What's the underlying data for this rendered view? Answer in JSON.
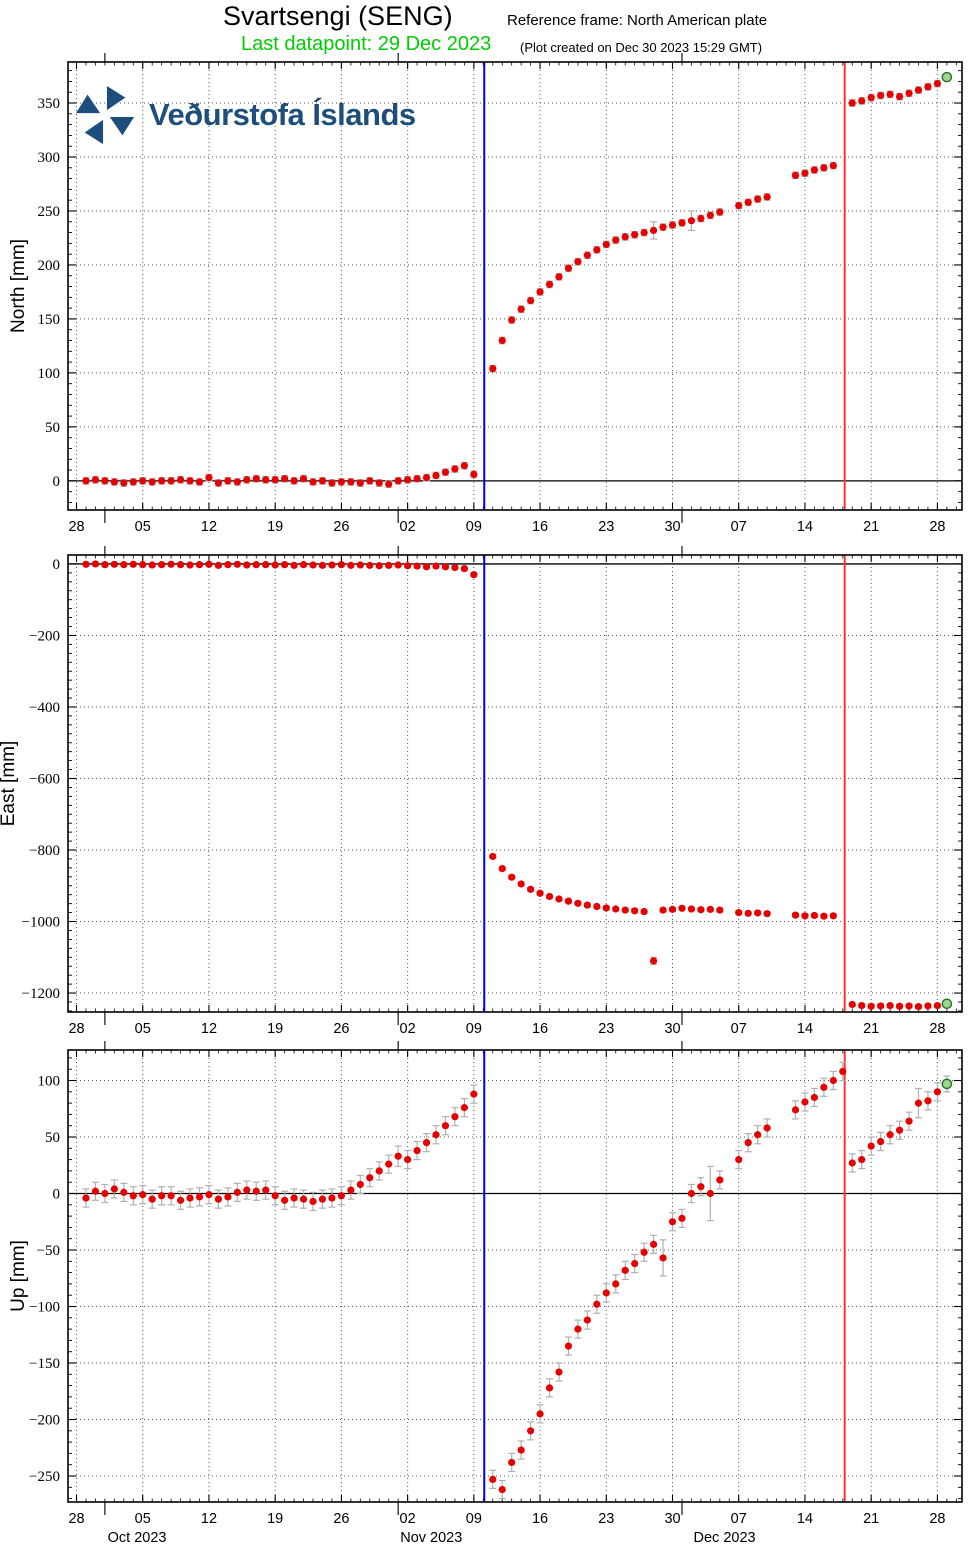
{
  "header": {
    "title": "Svartsengi (SENG)",
    "reference_frame": "Reference frame: North American plate",
    "last_datapoint": "Last datapoint: 29 Dec 2023",
    "plot_created": "(Plot created on Dec 30 2023 15:29 GMT)"
  },
  "logo": {
    "text": "Veðurstofa Íslands",
    "color": "#1d4e7c"
  },
  "colors": {
    "point": "#e60000",
    "error_bar": "#b0b0b0",
    "green_fill": "#98d888",
    "green_edge": "#2d6e2d",
    "blue_line": "#0000e6",
    "red_line": "#ff3232",
    "grid": "#555555",
    "axis": "#000000",
    "subtitle_green": "#00cc00"
  },
  "x_axis": {
    "unit": "days since 28 Sep 2023",
    "range_days": [
      -0.9,
      93.6
    ],
    "tick_days": [
      0,
      7,
      14,
      21,
      28,
      35,
      42,
      49,
      56,
      63,
      70,
      77,
      84,
      91
    ],
    "tick_labels": [
      "28",
      "05",
      "12",
      "19",
      "26",
      "02",
      "09",
      "16",
      "23",
      "30",
      "07",
      "14",
      "21",
      "28"
    ],
    "month_start_days": [
      3,
      34,
      64
    ],
    "month_labels": [
      {
        "label": "Oct 2023",
        "day": 6.4
      },
      {
        "label": "Nov 2023",
        "day": 37.5
      },
      {
        "label": "Dec 2023",
        "day": 68.5
      }
    ]
  },
  "event_lines": [
    {
      "name": "blue-vertical-line",
      "color": "#0000e6",
      "day": 43.1
    },
    {
      "name": "red-vertical-line",
      "color": "#ff3232",
      "day": 81.2
    }
  ],
  "chart_data": [
    {
      "type": "scatter",
      "name": "north",
      "ylabel": "North [mm]",
      "grid": true,
      "ylim": [
        -27,
        388
      ],
      "yminor": 10,
      "yticks": [
        [
          0,
          "0"
        ],
        [
          50,
          "50"
        ],
        [
          100,
          "100"
        ],
        [
          150,
          "150"
        ],
        [
          200,
          "200"
        ],
        [
          250,
          "250"
        ],
        [
          300,
          "300"
        ],
        [
          350,
          "350"
        ]
      ],
      "default_err": 3,
      "points": [
        [
          1,
          0
        ],
        [
          2,
          1
        ],
        [
          3,
          0
        ],
        [
          4,
          -1
        ],
        [
          5,
          -2
        ],
        [
          6,
          -1
        ],
        [
          7,
          0
        ],
        [
          8,
          -1
        ],
        [
          9,
          0
        ],
        [
          10,
          0
        ],
        [
          11,
          1
        ],
        [
          12,
          0
        ],
        [
          13,
          -1
        ],
        [
          14,
          3
        ],
        [
          15,
          -2
        ],
        [
          16,
          0
        ],
        [
          17,
          -1
        ],
        [
          18,
          1
        ],
        [
          19,
          2
        ],
        [
          20,
          1
        ],
        [
          21,
          1
        ],
        [
          22,
          2
        ],
        [
          23,
          0
        ],
        [
          24,
          2
        ],
        [
          25,
          -1
        ],
        [
          26,
          0
        ],
        [
          27,
          -2
        ],
        [
          28,
          -1
        ],
        [
          29,
          -1
        ],
        [
          30,
          -2
        ],
        [
          31,
          0
        ],
        [
          32,
          -2
        ],
        [
          33,
          -3
        ],
        [
          34,
          0
        ],
        [
          35,
          1
        ],
        [
          36,
          2
        ],
        [
          37,
          3
        ],
        [
          38,
          5
        ],
        [
          39,
          8
        ],
        [
          40,
          11
        ],
        [
          41,
          14
        ],
        [
          42,
          6
        ],
        [
          44,
          104
        ],
        [
          45,
          130
        ],
        [
          46,
          149
        ],
        [
          47,
          159
        ],
        [
          48,
          167
        ],
        [
          49,
          175
        ],
        [
          50,
          182
        ],
        [
          51,
          189
        ],
        [
          52,
          197
        ],
        [
          53,
          203
        ],
        [
          54,
          209
        ],
        [
          55,
          214
        ],
        [
          56,
          219
        ],
        [
          57,
          223
        ],
        [
          58,
          226
        ],
        [
          59,
          228
        ],
        [
          60,
          230
        ],
        [
          61,
          232,
          8
        ],
        [
          62,
          235
        ],
        [
          63,
          237
        ],
        [
          64,
          239
        ],
        [
          65,
          241,
          9
        ],
        [
          66,
          243
        ],
        [
          67,
          246
        ],
        [
          68,
          249
        ],
        [
          70,
          255
        ],
        [
          71,
          258
        ],
        [
          72,
          261
        ],
        [
          73,
          263
        ],
        [
          76,
          283
        ],
        [
          77,
          285
        ],
        [
          78,
          288
        ],
        [
          79,
          290
        ],
        [
          80,
          292
        ],
        [
          82,
          350
        ],
        [
          83,
          352
        ],
        [
          84,
          355
        ],
        [
          85,
          357
        ],
        [
          86,
          358
        ],
        [
          87,
          356
        ],
        [
          88,
          359
        ],
        [
          89,
          362
        ],
        [
          90,
          365
        ],
        [
          91,
          368
        ]
      ],
      "last_point": [
        92,
        374,
        3
      ]
    },
    {
      "type": "scatter",
      "name": "east",
      "ylabel": "East [mm]",
      "grid": true,
      "ylim": [
        -1253,
        25
      ],
      "yminor": 25,
      "yticks": [
        [
          0,
          "0"
        ],
        [
          -200,
          "−200"
        ],
        [
          -400,
          "−400"
        ],
        [
          -600,
          "−600"
        ],
        [
          -800,
          "−800"
        ],
        [
          -1000,
          "−1000"
        ],
        [
          -1200,
          "−1200"
        ]
      ],
      "default_err": 5,
      "points": [
        [
          1,
          -1
        ],
        [
          2,
          0
        ],
        [
          3,
          -2
        ],
        [
          4,
          -1
        ],
        [
          5,
          -2
        ],
        [
          6,
          -1
        ],
        [
          7,
          -2
        ],
        [
          8,
          -3
        ],
        [
          9,
          -2
        ],
        [
          10,
          -1
        ],
        [
          11,
          -2
        ],
        [
          12,
          -3
        ],
        [
          13,
          -2
        ],
        [
          14,
          -1
        ],
        [
          15,
          -4
        ],
        [
          16,
          -2
        ],
        [
          17,
          -1
        ],
        [
          18,
          -3
        ],
        [
          19,
          -2
        ],
        [
          20,
          -2
        ],
        [
          21,
          -3
        ],
        [
          22,
          -2
        ],
        [
          23,
          -4
        ],
        [
          24,
          -2
        ],
        [
          25,
          -3
        ],
        [
          26,
          -4
        ],
        [
          27,
          -3
        ],
        [
          28,
          -2
        ],
        [
          29,
          -4
        ],
        [
          30,
          -3
        ],
        [
          31,
          -4
        ],
        [
          32,
          -5
        ],
        [
          33,
          -4
        ],
        [
          34,
          -3
        ],
        [
          35,
          -5
        ],
        [
          36,
          -6
        ],
        [
          37,
          -8
        ],
        [
          38,
          -6
        ],
        [
          39,
          -8
        ],
        [
          40,
          -10
        ],
        [
          41,
          -13
        ],
        [
          42,
          -30
        ],
        [
          44,
          -818
        ],
        [
          45,
          -852
        ],
        [
          46,
          -876
        ],
        [
          47,
          -895
        ],
        [
          48,
          -910
        ],
        [
          49,
          -921
        ],
        [
          50,
          -930
        ],
        [
          51,
          -937
        ],
        [
          52,
          -943
        ],
        [
          53,
          -949
        ],
        [
          54,
          -954
        ],
        [
          55,
          -958
        ],
        [
          56,
          -962
        ],
        [
          57,
          -965
        ],
        [
          58,
          -968
        ],
        [
          59,
          -970
        ],
        [
          60,
          -972
        ],
        [
          61,
          -1110,
          10
        ],
        [
          62,
          -968
        ],
        [
          63,
          -966
        ],
        [
          64,
          -963
        ],
        [
          65,
          -965
        ],
        [
          66,
          -967
        ],
        [
          67,
          -966
        ],
        [
          68,
          -968
        ],
        [
          70,
          -975
        ],
        [
          71,
          -977
        ],
        [
          72,
          -976
        ],
        [
          73,
          -978
        ],
        [
          76,
          -982
        ],
        [
          77,
          -984
        ],
        [
          78,
          -983
        ],
        [
          79,
          -985
        ],
        [
          80,
          -984
        ],
        [
          82,
          -1232
        ],
        [
          83,
          -1235
        ],
        [
          84,
          -1237
        ],
        [
          85,
          -1236
        ],
        [
          86,
          -1235
        ],
        [
          87,
          -1237
        ],
        [
          88,
          -1236
        ],
        [
          89,
          -1238
        ],
        [
          90,
          -1236
        ],
        [
          91,
          -1235
        ]
      ],
      "last_point": [
        92,
        -1230,
        5
      ]
    },
    {
      "type": "scatter",
      "name": "up",
      "ylabel": "Up [mm]",
      "grid": true,
      "ylim": [
        -273,
        127
      ],
      "yminor": 10,
      "yticks": [
        [
          100,
          "100"
        ],
        [
          50,
          "50"
        ],
        [
          0,
          "0"
        ],
        [
          -50,
          "−50"
        ],
        [
          -100,
          "−100"
        ],
        [
          -150,
          "−150"
        ],
        [
          -200,
          "−200"
        ],
        [
          -250,
          "−250"
        ]
      ],
      "default_err": 8,
      "points": [
        [
          1,
          -4
        ],
        [
          2,
          2
        ],
        [
          3,
          0
        ],
        [
          4,
          4
        ],
        [
          5,
          1
        ],
        [
          6,
          -2
        ],
        [
          7,
          -1
        ],
        [
          8,
          -5
        ],
        [
          9,
          -2
        ],
        [
          10,
          -2
        ],
        [
          11,
          -6
        ],
        [
          12,
          -4
        ],
        [
          13,
          -3
        ],
        [
          14,
          -1
        ],
        [
          15,
          -5
        ],
        [
          16,
          -3
        ],
        [
          17,
          1
        ],
        [
          18,
          3
        ],
        [
          19,
          2
        ],
        [
          20,
          3
        ],
        [
          21,
          -2
        ],
        [
          22,
          -6
        ],
        [
          23,
          -4
        ],
        [
          24,
          -5
        ],
        [
          25,
          -7
        ],
        [
          26,
          -5
        ],
        [
          27,
          -4
        ],
        [
          28,
          -2
        ],
        [
          29,
          3
        ],
        [
          30,
          8
        ],
        [
          31,
          14
        ],
        [
          32,
          20
        ],
        [
          33,
          26
        ],
        [
          34,
          33,
          9
        ],
        [
          35,
          30
        ],
        [
          36,
          38
        ],
        [
          37,
          45
        ],
        [
          38,
          52
        ],
        [
          39,
          60
        ],
        [
          40,
          68
        ],
        [
          41,
          76
        ],
        [
          42,
          88
        ],
        [
          44,
          -253
        ],
        [
          45,
          -262
        ],
        [
          46,
          -238
        ],
        [
          47,
          -227
        ],
        [
          48,
          -210
        ],
        [
          49,
          -195
        ],
        [
          50,
          -172
        ],
        [
          51,
          -158
        ],
        [
          52,
          -135
        ],
        [
          53,
          -120
        ],
        [
          54,
          -112
        ],
        [
          55,
          -98
        ],
        [
          56,
          -88
        ],
        [
          57,
          -80
        ],
        [
          58,
          -68
        ],
        [
          59,
          -62
        ],
        [
          60,
          -52
        ],
        [
          61,
          -45
        ],
        [
          62,
          -57,
          16
        ],
        [
          63,
          -25
        ],
        [
          64,
          -22
        ],
        [
          65,
          0
        ],
        [
          66,
          6
        ],
        [
          67,
          0,
          24
        ],
        [
          68,
          12
        ],
        [
          70,
          30
        ],
        [
          71,
          45
        ],
        [
          72,
          52
        ],
        [
          73,
          58
        ],
        [
          76,
          74
        ],
        [
          77,
          81
        ],
        [
          78,
          85
        ],
        [
          79,
          94
        ],
        [
          80,
          100
        ],
        [
          81,
          108
        ],
        [
          82,
          27
        ],
        [
          83,
          30
        ],
        [
          84,
          42
        ],
        [
          85,
          46
        ],
        [
          86,
          52
        ],
        [
          87,
          56
        ],
        [
          88,
          64
        ],
        [
          89,
          80,
          13
        ],
        [
          90,
          82
        ],
        [
          91,
          90
        ]
      ],
      "last_point": [
        92,
        97,
        7
      ]
    }
  ]
}
